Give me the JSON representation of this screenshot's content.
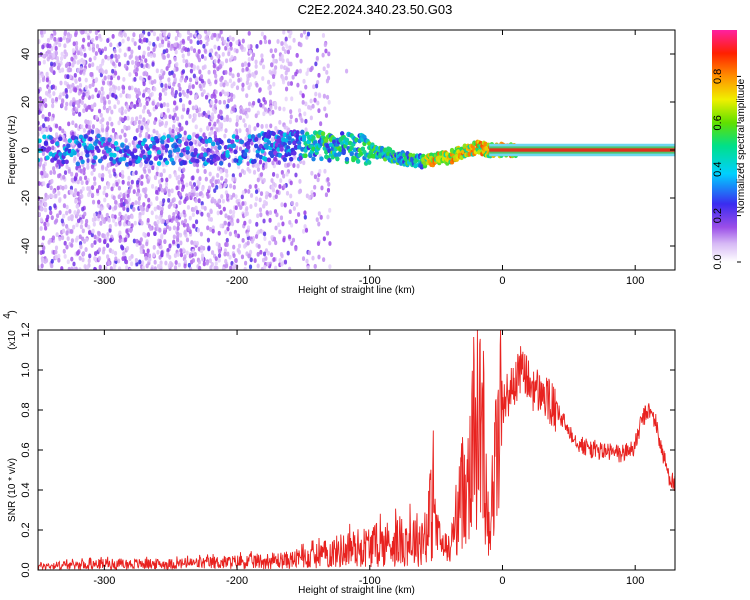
{
  "title": "C2E2.2024.340.23.50.G03",
  "chart_data": [
    {
      "type": "heatmap",
      "xlabel": "Height of straight line (km)",
      "ylabel": "Frequency (Hz)",
      "xlim": [
        -350,
        130
      ],
      "ylim": [
        -50,
        50
      ],
      "xticks": [
        -300,
        -200,
        -100,
        0,
        100
      ],
      "yticks": [
        -40,
        -20,
        0,
        20,
        40
      ],
      "frequency_track": {
        "x": [
          -350,
          -300,
          -250,
          -200,
          -170,
          -150,
          -120,
          -100,
          -85,
          -70,
          -60,
          -50,
          -40,
          -30,
          -20,
          -10,
          0,
          10,
          50,
          100,
          130
        ],
        "y": [
          0,
          0,
          0,
          0,
          2,
          2,
          1,
          0,
          -2,
          -4,
          -5,
          -4,
          -3,
          -1,
          1,
          0,
          0,
          0,
          0,
          0,
          0
        ]
      },
      "colorbar": {
        "label": "Normalized spectral amplitude",
        "range": [
          0.0,
          1.0
        ],
        "ticks": [
          0.0,
          0.2,
          0.4,
          0.6,
          0.8
        ]
      }
    },
    {
      "type": "line",
      "xlabel": "Height of straight line (km)",
      "ylabel": "SNR (10 * v/v)",
      "scale_label": "(x10",
      "scale_exp": "4",
      "xlim": [
        -350,
        130
      ],
      "ylim": [
        0,
        1.2
      ],
      "xticks": [
        -300,
        -200,
        -100,
        0,
        100
      ],
      "yticks": [
        0.0,
        0.2,
        0.4,
        0.6,
        0.8,
        1.0,
        1.2
      ],
      "color": "#e8221f",
      "series": [
        {
          "x": [
            -350,
            -300,
            -250,
            -200,
            -160,
            -140,
            -120,
            -100,
            -80,
            -60,
            -52,
            -48,
            -44,
            -40,
            -30,
            -25,
            -20,
            -15,
            -10,
            -5,
            0,
            5,
            10,
            15,
            20,
            25,
            30,
            40,
            50,
            60,
            70,
            80,
            90,
            100,
            105,
            110,
            115,
            120,
            125,
            130
          ],
          "y": [
            0.02,
            0.03,
            0.03,
            0.04,
            0.05,
            0.07,
            0.1,
            0.12,
            0.14,
            0.16,
            0.32,
            0.15,
            0.12,
            0.1,
            0.4,
            0.55,
            0.75,
            0.72,
            0.2,
            0.55,
            0.85,
            0.88,
            0.95,
            1.02,
            0.93,
            0.9,
            0.88,
            0.8,
            0.7,
            0.62,
            0.6,
            0.59,
            0.58,
            0.62,
            0.75,
            0.8,
            0.75,
            0.6,
            0.48,
            0.42
          ]
        }
      ]
    }
  ]
}
